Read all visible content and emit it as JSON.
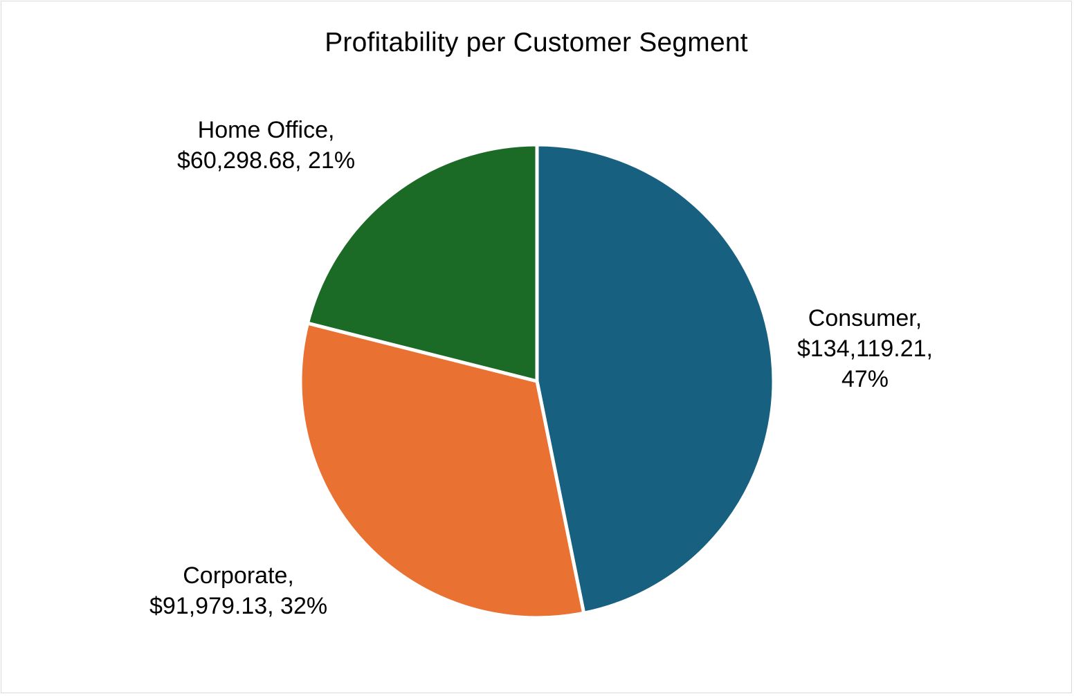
{
  "chart_data": {
    "type": "pie",
    "title": "Profitability per Customer Segment",
    "slices": [
      {
        "name": "Consumer",
        "value": 134119.21,
        "percent": 47,
        "color": "#17607f",
        "label_lines": [
          "Consumer,",
          "$134,119.21,",
          "47%"
        ]
      },
      {
        "name": "Corporate",
        "value": 91979.13,
        "percent": 32,
        "color": "#e97132",
        "label_lines": [
          "Corporate,",
          "$91,979.13, 32%"
        ]
      },
      {
        "name": "Home Office",
        "value": 60298.68,
        "percent": 21,
        "color": "#1b6b26",
        "label_lines": [
          "Home Office,",
          "$60,298.68, 21%"
        ]
      }
    ],
    "start_angle": "top",
    "direction": "clockwise",
    "legend": "none",
    "data_labels": "outside"
  }
}
